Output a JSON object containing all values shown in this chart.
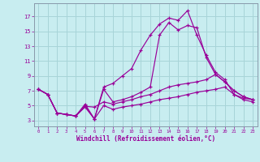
{
  "xlabel": "Windchill (Refroidissement éolien,°C)",
  "background_color": "#c8edf0",
  "grid_color": "#a8d4d8",
  "line_color": "#990099",
  "x_ticks": [
    0,
    1,
    2,
    3,
    4,
    5,
    6,
    7,
    8,
    9,
    10,
    11,
    12,
    13,
    14,
    15,
    16,
    17,
    18,
    19,
    20,
    21,
    22,
    23
  ],
  "y_ticks": [
    3,
    5,
    7,
    9,
    11,
    13,
    15,
    17
  ],
  "xlim": [
    -0.5,
    23.5
  ],
  "ylim": [
    2.2,
    18.8
  ],
  "series": [
    [
      7.2,
      6.5,
      4.0,
      3.8,
      3.6,
      4.8,
      3.2,
      5.0,
      4.5,
      4.8,
      5.0,
      5.2,
      5.5,
      5.8,
      6.0,
      6.2,
      6.5,
      6.8,
      7.0,
      7.2,
      7.5,
      6.5,
      5.8,
      5.5
    ],
    [
      7.2,
      6.5,
      4.0,
      3.8,
      3.6,
      4.9,
      4.8,
      5.5,
      5.2,
      5.5,
      5.8,
      6.2,
      6.5,
      7.0,
      7.5,
      7.8,
      8.0,
      8.2,
      8.5,
      9.2,
      8.2,
      7.0,
      6.2,
      5.8
    ],
    [
      7.2,
      6.5,
      4.0,
      3.8,
      3.6,
      5.0,
      3.2,
      7.2,
      5.5,
      5.8,
      6.2,
      6.8,
      7.5,
      14.5,
      16.2,
      15.2,
      15.8,
      15.5,
      11.5,
      9.2,
      8.2,
      7.0,
      6.2,
      5.8
    ],
    [
      7.2,
      6.5,
      4.0,
      3.8,
      3.6,
      5.2,
      3.2,
      7.5,
      8.0,
      9.0,
      10.0,
      12.5,
      14.5,
      16.0,
      16.8,
      16.5,
      17.8,
      14.5,
      11.8,
      9.5,
      8.5,
      6.5,
      6.0,
      5.8
    ]
  ]
}
